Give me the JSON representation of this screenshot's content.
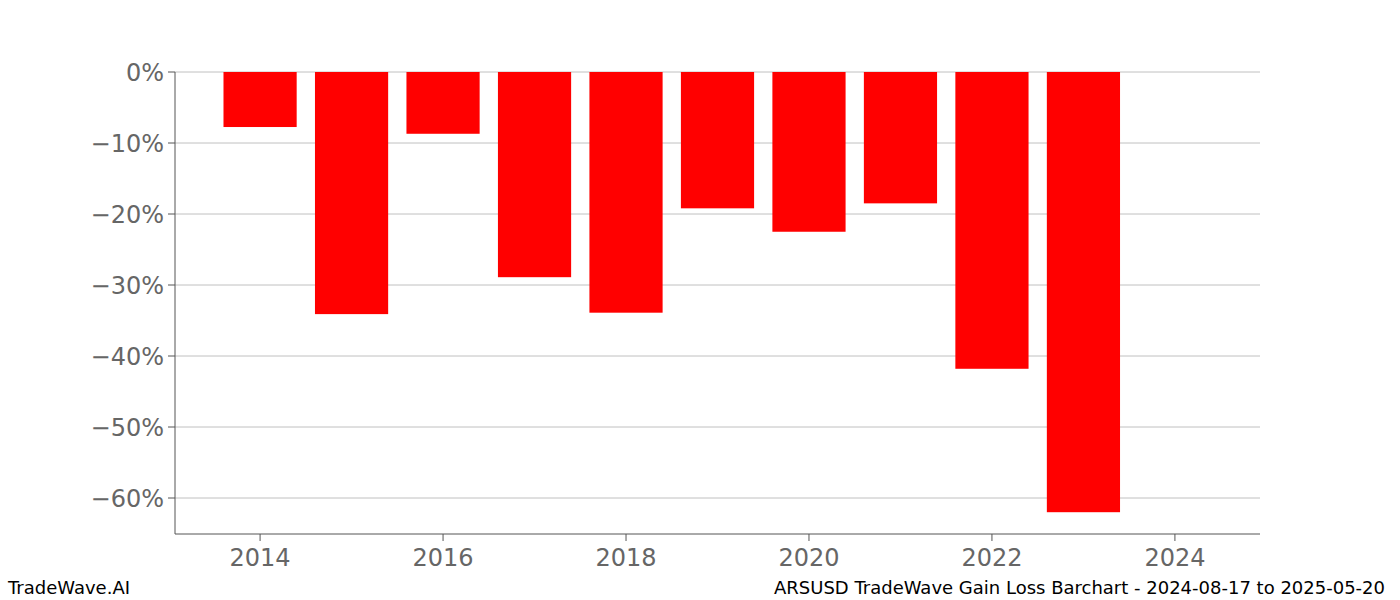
{
  "chart_data": {
    "type": "bar",
    "title": "ARSUSD TradeWave Gain Loss Barchart - 2024-08-17 to 2025-05-20",
    "annotations": [
      "TradeWave.AI"
    ],
    "x": [
      2014,
      2015,
      2016,
      2017,
      2018,
      2019,
      2020,
      2021,
      2022,
      2023
    ],
    "values": [
      -7.75,
      -34.1,
      -8.7,
      -28.9,
      -33.9,
      -19.2,
      -22.5,
      -18.5,
      -41.8,
      -62.0
    ],
    "color": "#ff0000",
    "xlim": [
      2013.07,
      2024.93
    ],
    "xticks": [
      2014,
      2016,
      2018,
      2020,
      2022,
      2024
    ],
    "ylim": [
      -65.07,
      0
    ],
    "yticks": [
      {
        "value": 0,
        "label": "0%"
      },
      {
        "value": -10,
        "label": "−10%"
      },
      {
        "value": -20,
        "label": "−20%"
      },
      {
        "value": -30,
        "label": "−30%"
      },
      {
        "value": -40,
        "label": "−40%"
      },
      {
        "value": -50,
        "label": "−50%"
      },
      {
        "value": -60,
        "label": "−60%"
      }
    ],
    "grid": true
  }
}
